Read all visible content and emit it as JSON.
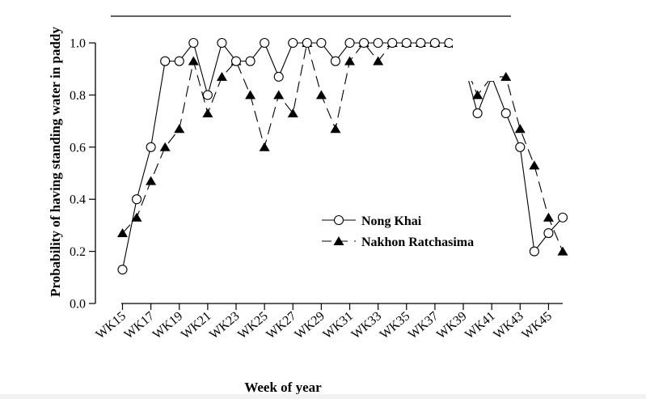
{
  "chart_data": {
    "type": "line",
    "xlabel": "Week of year",
    "ylabel": "Probability of having standing water in paddy",
    "ylim": [
      0,
      1.0
    ],
    "yticks": [
      0.0,
      0.2,
      0.4,
      0.6,
      0.8,
      1.0
    ],
    "ytick_labels": [
      "0.0",
      "0.2",
      "0.4",
      "0.6",
      "0.8",
      "1.0"
    ],
    "x": [
      15,
      16,
      17,
      18,
      19,
      20,
      21,
      22,
      23,
      24,
      25,
      26,
      27,
      28,
      29,
      30,
      31,
      32,
      33,
      34,
      35,
      36,
      37,
      38,
      39,
      40,
      41,
      42,
      43,
      44,
      45,
      46
    ],
    "xlim": [
      15,
      46
    ],
    "xtick_values": [
      15,
      17,
      19,
      21,
      23,
      25,
      27,
      29,
      31,
      33,
      35,
      37,
      39,
      41,
      43,
      45
    ],
    "xtick_labels": [
      "WK15",
      "WK17",
      "WK19",
      "WK21",
      "WK23",
      "WK25",
      "WK27",
      "WK29",
      "WK31",
      "WK33",
      "WK35",
      "WK37",
      "WK39",
      "WK41",
      "WK43",
      "WK45"
    ],
    "grid": false,
    "legend_position": "lower-center",
    "series": [
      {
        "name": "Nong Khai",
        "marker": "open-circle",
        "line_style": "solid",
        "values": [
          0.13,
          0.4,
          0.6,
          0.93,
          0.93,
          1.0,
          0.8,
          1.0,
          0.93,
          0.93,
          1.0,
          0.87,
          1.0,
          1.0,
          1.0,
          0.93,
          1.0,
          1.0,
          1.0,
          1.0,
          1.0,
          1.0,
          1.0,
          1.0,
          0.93,
          0.73,
          0.87,
          0.73,
          0.6,
          0.2,
          0.27,
          0.33
        ]
      },
      {
        "name": "Nakhon Ratchasima",
        "marker": "filled-triangle",
        "line_style": "dashed",
        "values": [
          0.27,
          0.33,
          0.47,
          0.6,
          0.67,
          0.93,
          0.73,
          0.87,
          0.93,
          0.8,
          0.6,
          0.8,
          0.73,
          1.0,
          0.8,
          0.67,
          0.93,
          1.0,
          0.93,
          1.0,
          1.0,
          1.0,
          1.0,
          1.0,
          0.93,
          0.8,
          0.87,
          0.87,
          0.67,
          0.53,
          0.33,
          0.2
        ]
      }
    ]
  }
}
